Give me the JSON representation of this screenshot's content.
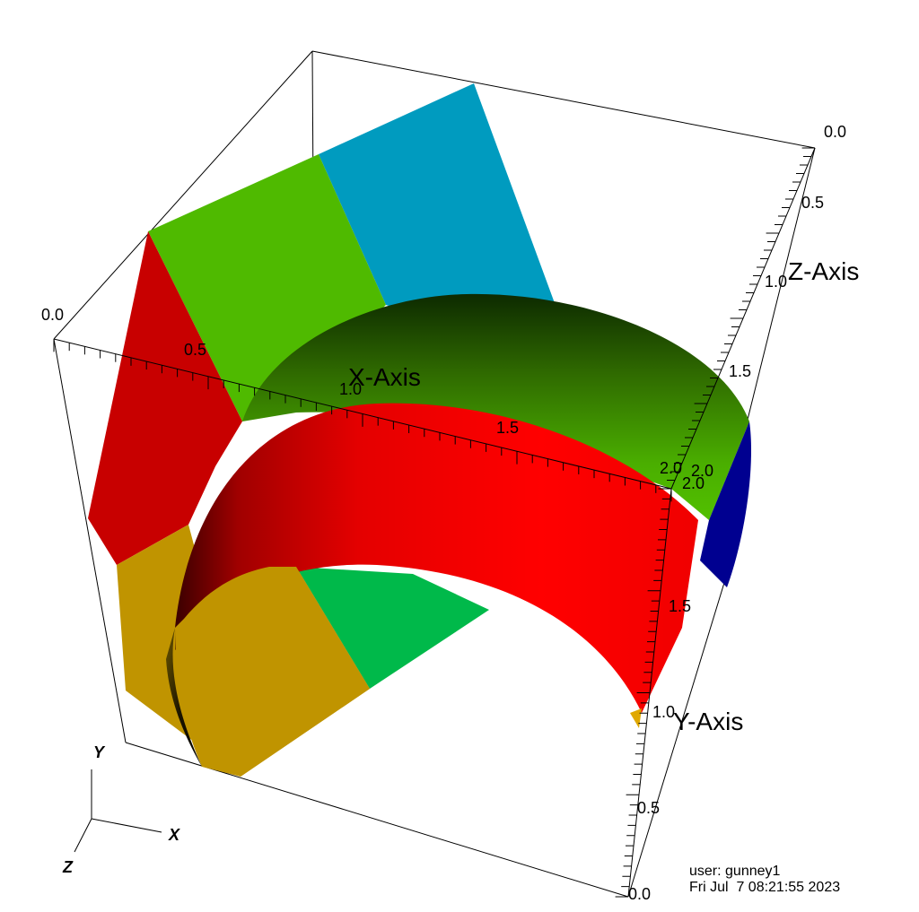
{
  "axes": {
    "x": {
      "title": "X-Axis",
      "ticks": [
        "0.0",
        "0.5",
        "1.0",
        "1.5",
        "2.0"
      ]
    },
    "y": {
      "title": "Y-Axis",
      "ticks": [
        "0.0",
        "0.5",
        "1.0",
        "1.5",
        "2.0"
      ]
    },
    "z": {
      "title": "Z-Axis",
      "ticks": [
        "0.0",
        "0.5",
        "1.0",
        "1.5",
        "2.0"
      ]
    }
  },
  "triad": {
    "x": "X",
    "y": "Y",
    "z": "Z"
  },
  "info": {
    "user": "user: gunney1",
    "date": "Fri Jul  7 08:21:55 2023"
  },
  "colors": {
    "red": "#e00000",
    "green": "#4fba00",
    "cyan": "#009bbf",
    "gold": "#c09400",
    "emerald": "#00b94a",
    "navy": "#000090"
  }
}
